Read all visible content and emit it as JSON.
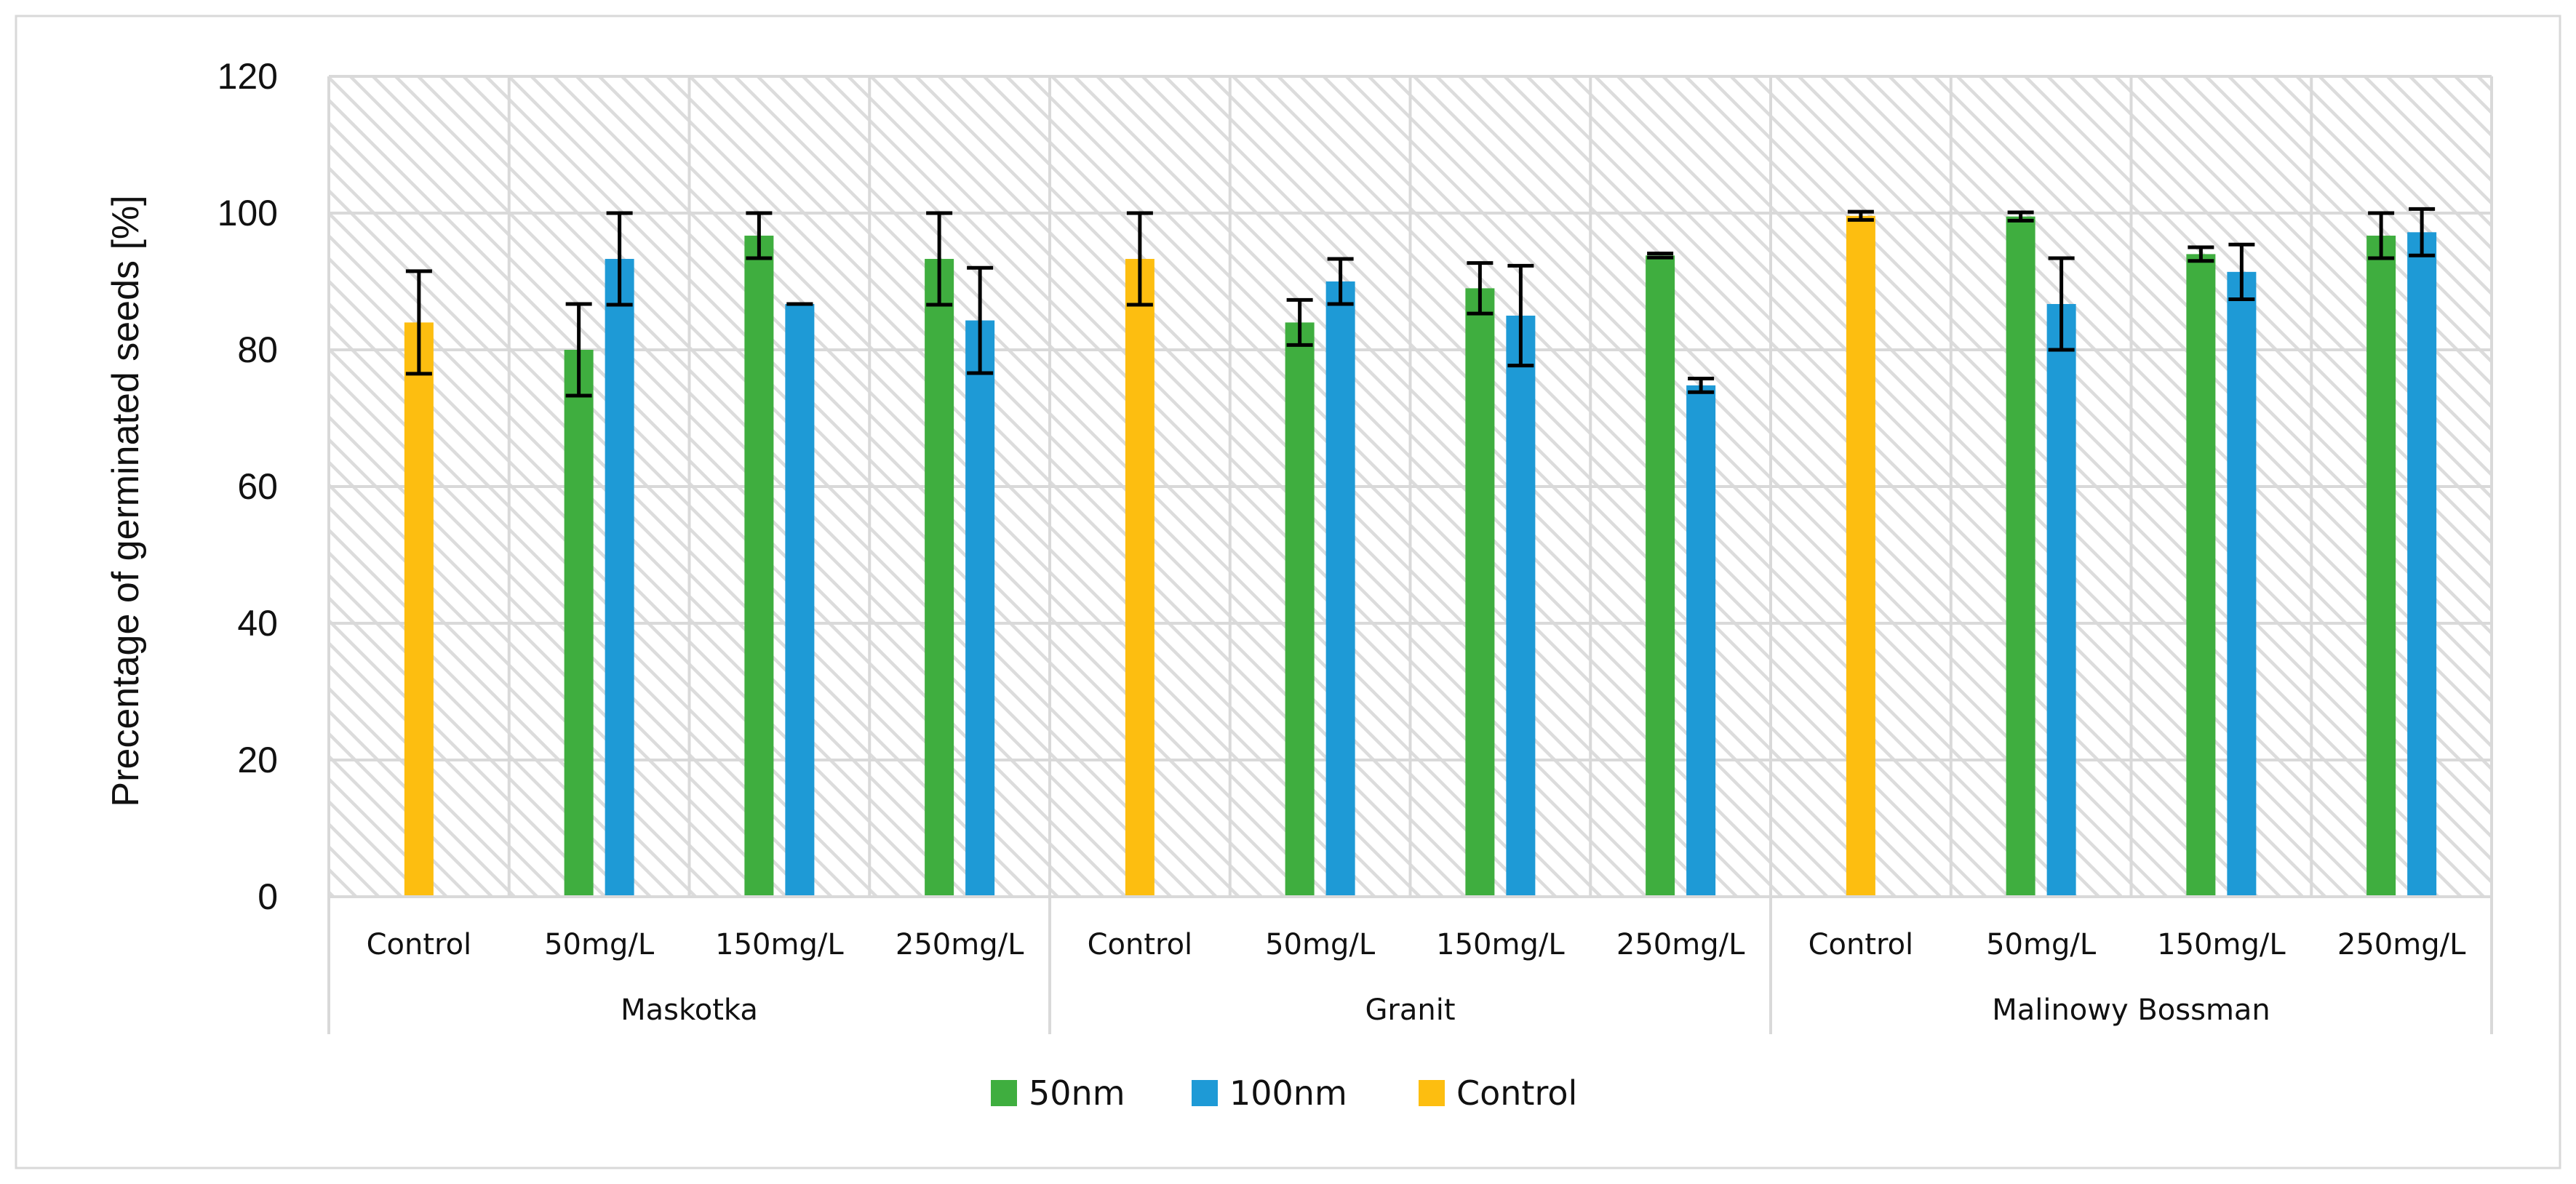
{
  "chart_data": {
    "type": "bar",
    "title": "",
    "ylabel": "Precentage of germinated seeds [%]",
    "xlabel": "",
    "ylim": [
      0,
      120
    ],
    "yticks": [
      0,
      20,
      40,
      60,
      80,
      100,
      120
    ],
    "grid": true,
    "legend_position": "bottom",
    "legend": [
      {
        "key": "50nm",
        "label": "50nm",
        "color": "#3fae3f"
      },
      {
        "key": "100nm",
        "label": "100nm",
        "color": "#1e9ad6"
      },
      {
        "key": "control",
        "label": "Control",
        "color": "#fdbe10"
      }
    ],
    "groups": [
      {
        "name": "Maskotka",
        "categories": [
          {
            "label": "Control",
            "bars": [
              {
                "series": "control",
                "value": 84,
                "err": 7.5
              }
            ]
          },
          {
            "label": "50mg/L",
            "bars": [
              {
                "series": "50nm",
                "value": 80,
                "err": 6.7
              },
              {
                "series": "100nm",
                "value": 93.3,
                "err": 6.7
              }
            ]
          },
          {
            "label": "150mg/L",
            "bars": [
              {
                "series": "50nm",
                "value": 96.7,
                "err": 3.3
              },
              {
                "series": "100nm",
                "value": 86.7,
                "err": 0
              }
            ]
          },
          {
            "label": "250mg/L",
            "bars": [
              {
                "series": "50nm",
                "value": 93.3,
                "err": 6.7
              },
              {
                "series": "100nm",
                "value": 84.3,
                "err": 7.7
              }
            ]
          }
        ]
      },
      {
        "name": "Granit",
        "categories": [
          {
            "label": "Control",
            "bars": [
              {
                "series": "control",
                "value": 93.3,
                "err": 6.7
              }
            ]
          },
          {
            "label": "50mg/L",
            "bars": [
              {
                "series": "50nm",
                "value": 84,
                "err": 3.3
              },
              {
                "series": "100nm",
                "value": 90,
                "err": 3.3
              }
            ]
          },
          {
            "label": "150mg/L",
            "bars": [
              {
                "series": "50nm",
                "value": 89,
                "err": 3.7
              },
              {
                "series": "100nm",
                "value": 85,
                "err": 7.3
              }
            ]
          },
          {
            "label": "250mg/L",
            "bars": [
              {
                "series": "50nm",
                "value": 93.8,
                "err": 0.3
              },
              {
                "series": "100nm",
                "value": 74.8,
                "err": 1
              }
            ]
          }
        ]
      },
      {
        "name": "Malinowy Bossman",
        "categories": [
          {
            "label": "Control",
            "bars": [
              {
                "series": "control",
                "value": 99.6,
                "err": 0.6
              }
            ]
          },
          {
            "label": "50mg/L",
            "bars": [
              {
                "series": "50nm",
                "value": 99.5,
                "err": 0.6
              },
              {
                "series": "100nm",
                "value": 86.7,
                "err": 6.7
              }
            ]
          },
          {
            "label": "150mg/L",
            "bars": [
              {
                "series": "50nm",
                "value": 94,
                "err": 1
              },
              {
                "series": "100nm",
                "value": 91.4,
                "err": 4
              }
            ]
          },
          {
            "label": "250mg/L",
            "bars": [
              {
                "series": "50nm",
                "value": 96.7,
                "err": 3.3
              },
              {
                "series": "100nm",
                "value": 97.2,
                "err": 3.4
              }
            ]
          }
        ]
      }
    ]
  }
}
